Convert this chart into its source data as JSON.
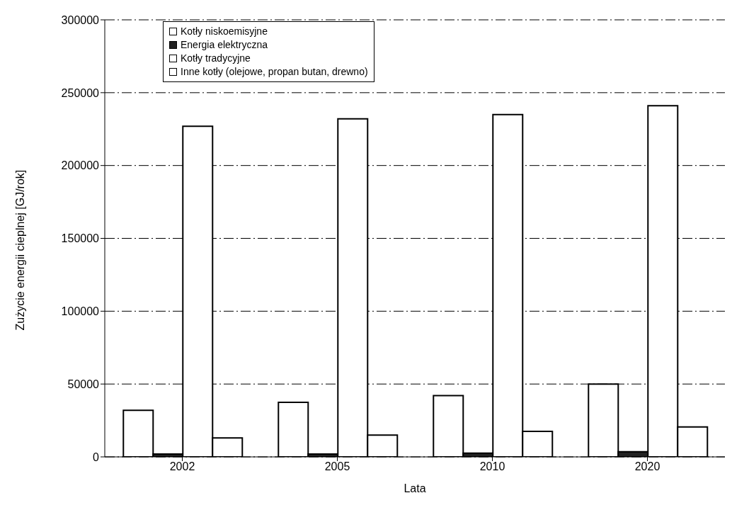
{
  "chart_data": {
    "type": "bar",
    "xlabel": "Lata",
    "ylabel": "Zużycie energii cieplnej [GJ/rok]",
    "categories": [
      "2002",
      "2005",
      "2010",
      "2020"
    ],
    "series": [
      {
        "name": "Kotły niskoemisyjne",
        "color": "#ffffff",
        "values": [
          32000,
          37500,
          42000,
          50000
        ]
      },
      {
        "name": "Energia elektryczna",
        "color": "#222222",
        "values": [
          2000,
          2000,
          2500,
          3500
        ]
      },
      {
        "name": "Kotły tradycyjne",
        "color": "#ffffff",
        "values": [
          227000,
          232000,
          235000,
          241000
        ]
      },
      {
        "name": "Inne kotły (olejowe, propan butan, drewno)",
        "color": "#ffffff",
        "values": [
          13000,
          15000,
          17500,
          20500
        ]
      }
    ],
    "ylim": [
      0,
      300000
    ],
    "yticks": [
      0,
      50000,
      100000,
      150000,
      200000,
      250000,
      300000
    ],
    "grid": "y",
    "legend": "top left"
  }
}
